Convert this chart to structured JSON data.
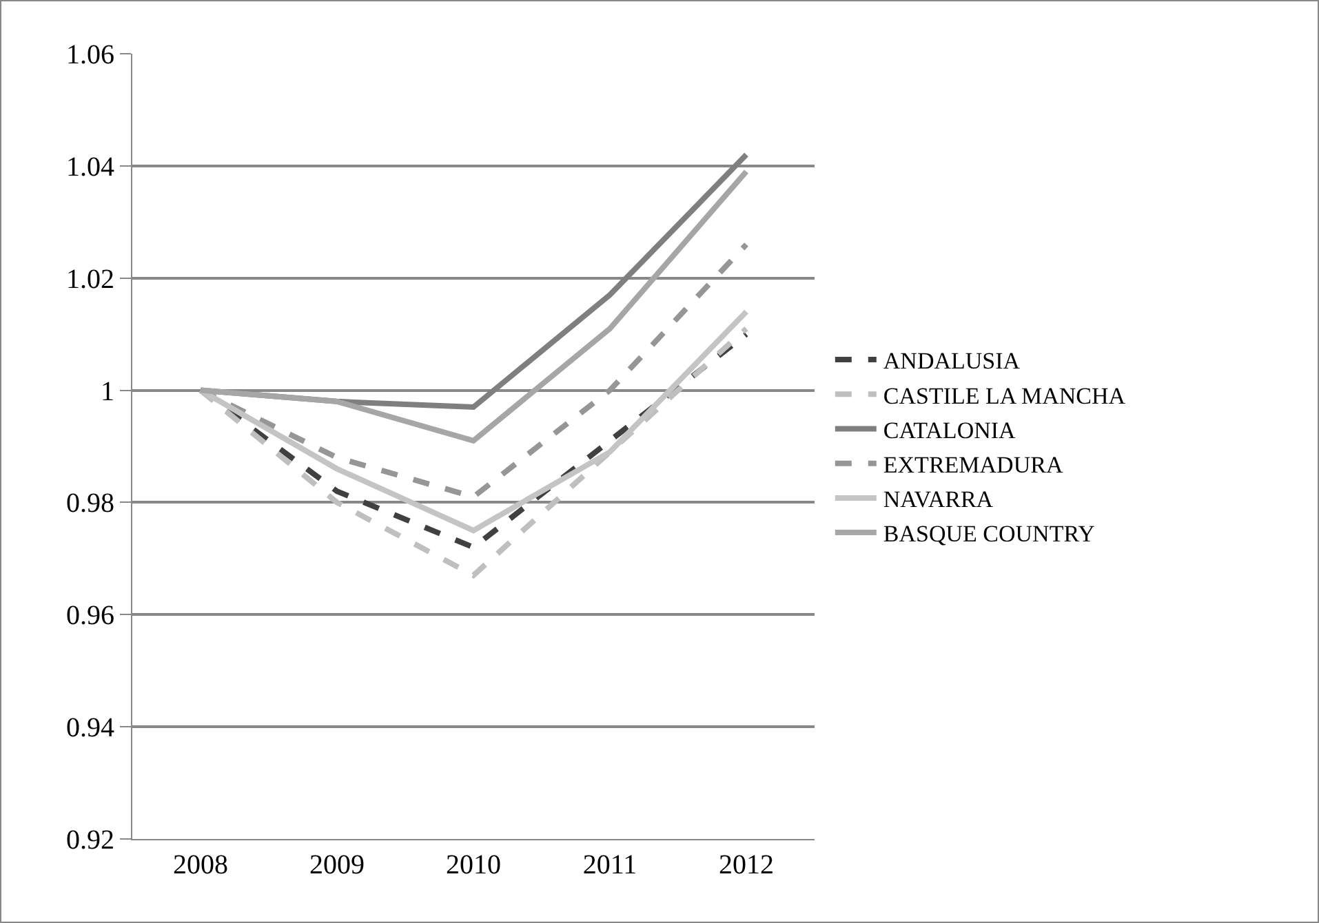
{
  "chart_data": {
    "type": "line",
    "categories": [
      "2008",
      "2009",
      "2010",
      "2011",
      "2012"
    ],
    "ylim": [
      0.92,
      1.06
    ],
    "yticks": [
      0.92,
      0.94,
      0.96,
      0.98,
      1,
      1.02,
      1.04,
      1.06
    ],
    "grid": "y",
    "legend": "right",
    "marker": "none",
    "series": [
      {
        "name": "ANDALUSIA",
        "color": "#404040",
        "line_style": "dashed",
        "values": [
          1,
          0.982,
          0.972,
          0.991,
          1.01
        ]
      },
      {
        "name": "CASTILE LA MANCHA",
        "color": "#bfbfbf",
        "line_style": "dashed",
        "values": [
          1,
          0.98,
          0.967,
          0.989,
          1.011
        ]
      },
      {
        "name": "CATALONIA",
        "color": "#7f7f7f",
        "line_style": "solid",
        "values": [
          1,
          0.998,
          0.997,
          1.017,
          1.042
        ]
      },
      {
        "name": "EXTREMADURA",
        "color": "#969696",
        "line_style": "dashed",
        "values": [
          1,
          0.988,
          0.981,
          1.0,
          1.026
        ]
      },
      {
        "name": "NAVARRA",
        "color": "#c4c4c4",
        "line_style": "solid",
        "values": [
          1,
          0.986,
          0.975,
          0.989,
          1.014
        ]
      },
      {
        "name": "BASQUE COUNTRY",
        "color": "#a6a6a6",
        "line_style": "solid",
        "values": [
          1,
          0.998,
          0.991,
          1.011,
          1.039
        ]
      }
    ]
  }
}
